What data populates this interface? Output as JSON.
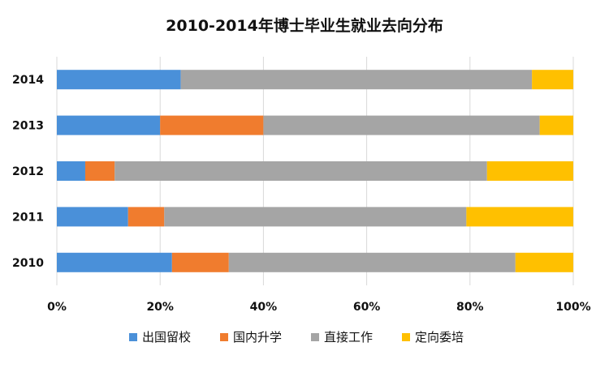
{
  "chart_data": {
    "type": "bar",
    "orientation": "horizontal",
    "stacked": "percent",
    "title": "2010-2014年博士毕业生就业去向分布",
    "categories": [
      "2010",
      "2011",
      "2012",
      "2013",
      "2014"
    ],
    "series": [
      {
        "name": "出国留校",
        "color": "#4a90d9",
        "values": [
          22.3,
          13.8,
          5.5,
          20.0,
          24.0
        ]
      },
      {
        "name": "国内升学",
        "color": "#f07c2e",
        "values": [
          11.0,
          7.0,
          5.7,
          20.0,
          0.0
        ]
      },
      {
        "name": "直接工作",
        "color": "#a5a5a5",
        "values": [
          55.5,
          58.5,
          72.1,
          53.5,
          68.0
        ]
      },
      {
        "name": "定向委培",
        "color": "#ffc000",
        "values": [
          11.2,
          20.7,
          16.7,
          6.5,
          8.0
        ]
      }
    ],
    "xlim": [
      0,
      100
    ],
    "x_ticks": [
      "0%",
      "20%",
      "40%",
      "60%",
      "80%",
      "100%"
    ],
    "grid": true,
    "legend_position": "bottom"
  }
}
